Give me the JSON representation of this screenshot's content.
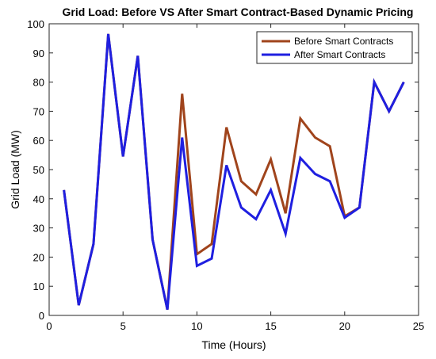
{
  "chart_data": {
    "type": "line",
    "title": "Grid Load: Before VS After Smart Contract-Based Dynamic Pricing",
    "xlabel": "Time (Hours)",
    "ylabel": "Grid Load (MW)",
    "xlim": [
      0,
      25
    ],
    "ylim": [
      0,
      100
    ],
    "xticks": [
      0,
      5,
      10,
      15,
      20,
      25
    ],
    "yticks": [
      0,
      10,
      20,
      30,
      40,
      50,
      60,
      70,
      80,
      90,
      100
    ],
    "grid": false,
    "legend_position": "top-right",
    "x": [
      1,
      2,
      3,
      4,
      5,
      6,
      7,
      8,
      9,
      10,
      11,
      12,
      13,
      14,
      15,
      16,
      17,
      18,
      19,
      20,
      21,
      22,
      23,
      24
    ],
    "series": [
      {
        "name": "Before Smart Contracts",
        "color": "#a0441c",
        "values": [
          43,
          3.5,
          24.5,
          96.5,
          54.5,
          89,
          26,
          2,
          76,
          21,
          24.5,
          64.5,
          46,
          41.5,
          53.5,
          35,
          67.5,
          61,
          58,
          34,
          37,
          80,
          70,
          80
        ]
      },
      {
        "name": "After Smart Contracts",
        "color": "#1f1fe0",
        "values": [
          43,
          3.5,
          24.5,
          96.5,
          54.5,
          89,
          26,
          2,
          61,
          17,
          19.5,
          51.5,
          37,
          33,
          43,
          28,
          54,
          48.5,
          46,
          33.5,
          37,
          80,
          70,
          80
        ]
      }
    ]
  }
}
